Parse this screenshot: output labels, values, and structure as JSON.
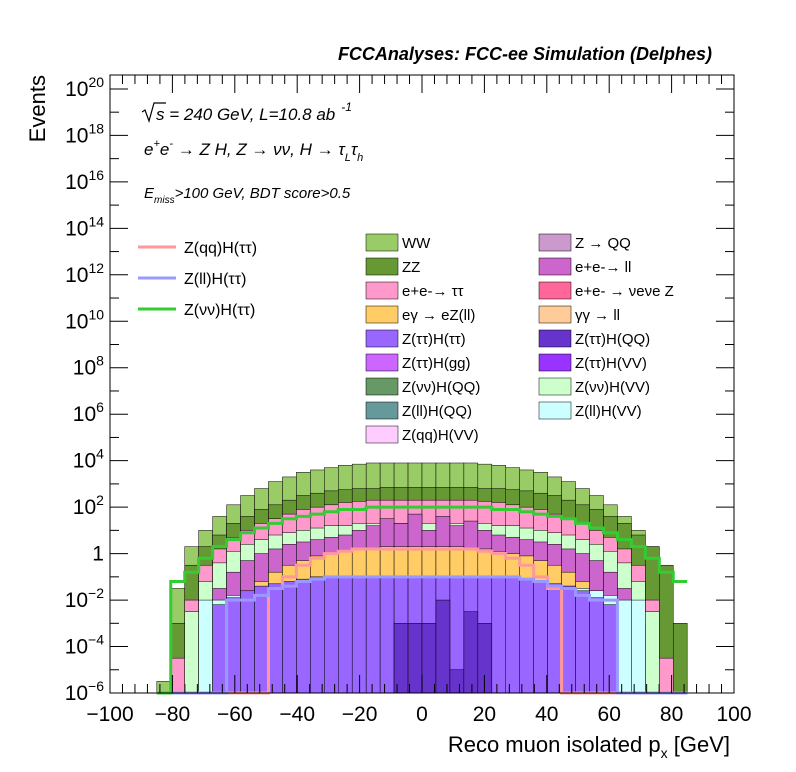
{
  "chart_data": {
    "type": "histogram-stacked",
    "title": "FCCAnalyses: FCC-ee Simulation (Delphes)",
    "xlabel": "Reco muon isolated p",
    "xlabel_sub": "x",
    "xlabel_unit": "[GeV]",
    "ylabel": "Events",
    "xlim": [
      -100,
      100
    ],
    "ylog": true,
    "ylim_exp": [
      -6,
      20.6
    ],
    "x_ticks": [
      "−100",
      "−80",
      "−60",
      "−40",
      "−20",
      "0",
      "20",
      "40",
      "60",
      "80",
      "100"
    ],
    "y_ticks": [
      {
        "exp": -6,
        "label": "10",
        "sup": "−6"
      },
      {
        "exp": -4,
        "label": "10",
        "sup": "−4"
      },
      {
        "exp": -2,
        "label": "10",
        "sup": "−2"
      },
      {
        "exp": 0,
        "label": "1",
        "sup": ""
      },
      {
        "exp": 2,
        "label": "10",
        "sup": "2"
      },
      {
        "exp": 4,
        "label": "10",
        "sup": "4"
      },
      {
        "exp": 6,
        "label": "10",
        "sup": "6"
      },
      {
        "exp": 8,
        "label": "10",
        "sup": "8"
      },
      {
        "exp": 10,
        "label": "10",
        "sup": "10"
      },
      {
        "exp": 12,
        "label": "10",
        "sup": "12"
      },
      {
        "exp": 14,
        "label": "10",
        "sup": "14"
      },
      {
        "exp": 16,
        "label": "10",
        "sup": "16"
      },
      {
        "exp": 18,
        "label": "10",
        "sup": "18"
      },
      {
        "exp": 20,
        "label": "10",
        "sup": "20"
      }
    ],
    "annotations": {
      "energy": "s = 240 GeV, L=10.8 ab",
      "energy_sup": "-1",
      "process_parts": [
        "e",
        "+",
        "e",
        "-",
        " → Z H, Z  → νν, H  → τ",
        "L",
        "τ",
        "h"
      ],
      "cut_parts": [
        "E",
        "miss",
        ">100 GeV, BDT score>0.5"
      ]
    },
    "stack_envelopes": [
      {
        "name": "WW",
        "color": "#99cc66",
        "log10_values": [
          -5.5,
          -1.5,
          0.3,
          1.0,
          1.6,
          2.1,
          2.5,
          2.8,
          3.1,
          3.3,
          3.5,
          3.6,
          3.7,
          3.8,
          3.85,
          3.9,
          3.9,
          3.9,
          3.9,
          3.9,
          3.9,
          3.9,
          3.9,
          3.85,
          3.8,
          3.7,
          3.6,
          3.5,
          3.3,
          3.1,
          2.8,
          2.5,
          2.1,
          1.6,
          1.0,
          0.3,
          -1.5,
          -5.5
        ]
      },
      {
        "name": "ZZ",
        "color": "#669933",
        "log10_values": [
          -6.0,
          -3.0,
          -0.5,
          0.3,
          0.8,
          1.3,
          1.6,
          1.9,
          2.1,
          2.3,
          2.5,
          2.6,
          2.7,
          2.75,
          2.8,
          2.8,
          2.85,
          2.85,
          2.85,
          2.85,
          2.85,
          2.85,
          2.85,
          2.8,
          2.8,
          2.75,
          2.7,
          2.6,
          2.5,
          2.3,
          2.1,
          1.9,
          1.6,
          1.3,
          0.8,
          0.3,
          -0.5,
          -3.0
        ]
      },
      {
        "name": "e+e- → ττ",
        "color": "#ff99cc",
        "log10_values": [
          -6.0,
          -4.5,
          -2.0,
          -0.5,
          0.2,
          0.7,
          1.0,
          1.3,
          1.5,
          1.7,
          1.9,
          2.0,
          2.1,
          2.2,
          2.25,
          2.3,
          2.3,
          2.3,
          2.3,
          2.3,
          2.3,
          2.3,
          2.3,
          2.25,
          2.2,
          2.1,
          2.0,
          1.9,
          1.7,
          1.5,
          1.3,
          1.0,
          0.7,
          0.2,
          -0.5,
          -2.0,
          -4.5,
          -6.0
        ]
      },
      {
        "name": "Z(νν)H(VV)",
        "color": "#ccffcc",
        "log10_values": [
          -6.0,
          -6.0,
          -2.5,
          -1.2,
          -0.4,
          0.1,
          0.4,
          0.6,
          0.8,
          0.9,
          1.0,
          1.1,
          1.2,
          1.2,
          1.3,
          1.3,
          1.3,
          1.3,
          1.3,
          1.3,
          1.3,
          1.3,
          1.3,
          1.3,
          1.2,
          1.2,
          1.1,
          1.0,
          0.9,
          0.8,
          0.6,
          0.4,
          0.1,
          -0.4,
          -1.2,
          -2.5,
          -6.0,
          -6.0
        ]
      },
      {
        "name": "e+e- → ll",
        "color": "#cc66cc",
        "log10_values": [
          -6.0,
          -6.0,
          -6.0,
          -3.0,
          -1.5,
          -0.8,
          -0.3,
          0.0,
          0.2,
          0.4,
          0.5,
          0.6,
          0.7,
          0.8,
          1.0,
          1.2,
          1.5,
          1.3,
          1.7,
          1.0,
          1.6,
          1.2,
          1.4,
          1.0,
          0.8,
          0.7,
          0.6,
          0.5,
          0.4,
          0.2,
          0.0,
          -0.3,
          -0.8,
          -1.5,
          -3.0,
          -6.0,
          -6.0,
          -6.0
        ]
      },
      {
        "name": "eγ → eZ(ll)",
        "color": "#ffcc66",
        "log10_values": [
          -6.0,
          -6.0,
          -6.0,
          -6.0,
          -6.0,
          -2.5,
          -1.8,
          -1.2,
          -0.8,
          -0.5,
          -0.3,
          -0.1,
          0.0,
          0.1,
          0.2,
          0.2,
          0.3,
          0.3,
          0.3,
          0.3,
          0.3,
          0.3,
          0.2,
          0.2,
          0.1,
          0.0,
          -0.1,
          -0.3,
          -0.5,
          -0.8,
          -1.2,
          -1.8,
          -2.5,
          -6.0,
          -6.0,
          -6.0,
          -6.0,
          -6.0
        ]
      },
      {
        "name": "Z(ll)H(VV)",
        "color": "#ccffff",
        "log10_values": [
          -6.0,
          -6.0,
          -6.0,
          -2.0,
          -2.0,
          -1.8,
          -1.6,
          -1.5,
          -1.4,
          -1.3,
          -1.2,
          -1.1,
          -1.1,
          -1.0,
          -1.0,
          -1.0,
          -1.0,
          -1.0,
          -1.0,
          -1.0,
          -1.0,
          -1.0,
          -1.0,
          -1.0,
          -1.0,
          -1.1,
          -1.1,
          -1.2,
          -1.3,
          -1.4,
          -1.5,
          -1.6,
          -1.8,
          -2.0,
          -2.0,
          -6.0,
          -6.0,
          -6.0
        ]
      },
      {
        "name": "Z(ττ)H(ττ)",
        "color": "#9966ff",
        "log10_values": [
          -6.0,
          -6.0,
          -6.0,
          -6.0,
          -2.2,
          -1.9,
          -1.6,
          -1.4,
          -1.3,
          -1.2,
          -1.1,
          -1.0,
          -1.0,
          -1.0,
          -1.0,
          -1.0,
          -1.0,
          -1.0,
          -1.0,
          -1.0,
          -1.0,
          -1.0,
          -1.0,
          -1.0,
          -1.0,
          -1.0,
          -1.1,
          -1.2,
          -1.3,
          -1.4,
          -1.6,
          -1.9,
          -2.2,
          -6.0,
          -6.0,
          -6.0,
          -6.0,
          -6.0
        ]
      },
      {
        "name": "Z(ττ)H(QQ)",
        "color": "#6633cc",
        "log10_values": [
          -6.0,
          -6.0,
          -6.0,
          -6.0,
          -6.0,
          -6.0,
          -6.0,
          -6.0,
          -6.0,
          -6.0,
          -6.0,
          -6.0,
          -6.0,
          -6.0,
          -6.0,
          -6.0,
          -6.0,
          -3.0,
          -3.0,
          -3.0,
          -2.0,
          -5.0,
          -2.5,
          -3.0,
          -6.0,
          -6.0,
          -6.0,
          -6.0,
          -6.0,
          -6.0,
          -6.0,
          -6.0,
          -6.0,
          -6.0,
          -6.0,
          -6.0,
          -6.0,
          -6.0
        ]
      }
    ],
    "signal_lines": [
      {
        "name": "Z(qq)H(ττ)",
        "color": "#ff9999",
        "log10_values": [
          -6.0,
          -6.0,
          -6.0,
          -6.0,
          -6.0,
          -6.0,
          -6.0,
          -6.0,
          -1.5,
          -1.0,
          -0.5,
          -0.2,
          0.0,
          0.1,
          0.2,
          0.2,
          0.2,
          0.2,
          0.2,
          0.2,
          0.2,
          0.2,
          0.2,
          0.1,
          0.0,
          -0.2,
          -0.5,
          -1.0,
          -1.5,
          -6.0,
          -6.0,
          -6.0,
          -6.0,
          -6.0,
          -6.0,
          -6.0,
          -6.0,
          -6.0
        ]
      },
      {
        "name": "Z(ll)H(ττ)",
        "color": "#9999ff",
        "log10_values": [
          -6.0,
          -6.0,
          -6.0,
          -6.0,
          -6.0,
          -2.0,
          -2.0,
          -1.8,
          -1.5,
          -1.4,
          -1.2,
          -1.1,
          -1.0,
          -1.0,
          -1.0,
          -1.0,
          -1.0,
          -1.0,
          -1.0,
          -1.0,
          -1.0,
          -1.0,
          -1.0,
          -1.0,
          -1.0,
          -1.0,
          -1.1,
          -1.2,
          -1.4,
          -1.5,
          -1.8,
          -2.0,
          -2.0,
          -6.0,
          -6.0,
          -6.0,
          -6.0,
          -6.0
        ]
      },
      {
        "name": "Z(νν)H(ττ)",
        "color": "#33cc33",
        "log10_values": [
          -6.0,
          -1.2,
          -0.8,
          -0.2,
          0.3,
          0.6,
          0.9,
          1.1,
          1.3,
          1.5,
          1.6,
          1.7,
          1.8,
          1.9,
          1.9,
          2.0,
          2.0,
          2.0,
          2.0,
          2.0,
          2.0,
          2.0,
          2.0,
          2.0,
          1.9,
          1.9,
          1.8,
          1.7,
          1.6,
          1.5,
          1.3,
          1.1,
          0.9,
          0.6,
          0.3,
          -0.2,
          -0.8,
          -1.2
        ]
      }
    ],
    "legend_signals": [
      {
        "name": "Z(qq)H(ττ)",
        "color": "#ff9999"
      },
      {
        "name": "Z(ll)H(ττ)",
        "color": "#9999ff"
      },
      {
        "name": "Z(νν)H(ττ)",
        "color": "#33cc33"
      }
    ],
    "legend_backgrounds": [
      {
        "name": "WW",
        "color": "#99cc66"
      },
      {
        "name": "Z → QQ",
        "color": "#cc99cc"
      },
      {
        "name": "ZZ",
        "color": "#669933"
      },
      {
        "name": "e+e-→ ll",
        "color": "#cc66cc"
      },
      {
        "name": "e+e-→ ττ",
        "color": "#ff99cc"
      },
      {
        "name": "e+e- → νeνe Z",
        "color": "#ff6699"
      },
      {
        "name": "eγ → eZ(ll)",
        "color": "#ffcc66"
      },
      {
        "name": "γγ → ll",
        "color": "#ffcc99"
      },
      {
        "name": "Z(ττ)H(ττ)",
        "color": "#9966ff"
      },
      {
        "name": "Z(ττ)H(QQ)",
        "color": "#6633cc"
      },
      {
        "name": "Z(ττ)H(gg)",
        "color": "#cc66ff"
      },
      {
        "name": "Z(ττ)H(VV)",
        "color": "#9933ff"
      },
      {
        "name": "Z(νν)H(QQ)",
        "color": "#669966"
      },
      {
        "name": "Z(νν)H(VV)",
        "color": "#ccffcc"
      },
      {
        "name": "Z(ll)H(QQ)",
        "color": "#669999"
      },
      {
        "name": "Z(ll)H(VV)",
        "color": "#ccffff"
      },
      {
        "name": "Z(qq)H(VV)",
        "color": "#ffccff"
      }
    ]
  }
}
